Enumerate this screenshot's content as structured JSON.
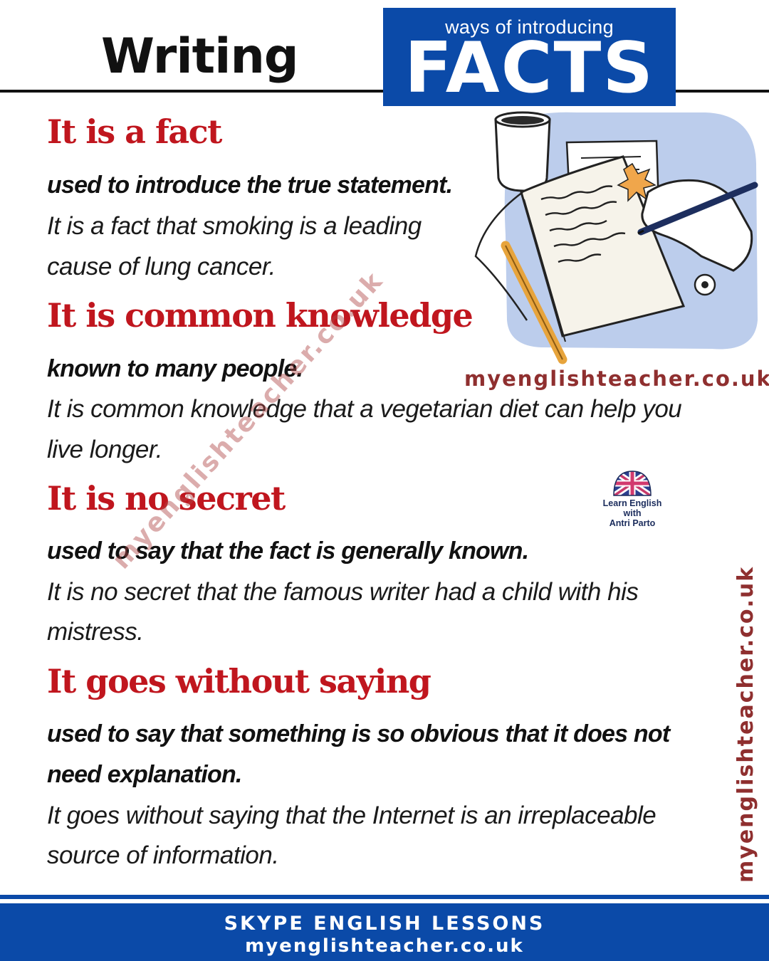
{
  "header": {
    "title": "Writing",
    "facts_box": {
      "subtitle": "ways of introducing",
      "title": "FACTS"
    }
  },
  "entries": [
    {
      "phrase": "It is a fact",
      "definition": [
        "used to introduce the true statement."
      ],
      "example": [
        "It is a fact that smoking is a leading",
        "cause of lung cancer."
      ]
    },
    {
      "phrase": "It is common knowledge",
      "definition": [
        "known to many people."
      ],
      "example": [
        "It is common knowledge that a vegetarian diet can help you",
        "live longer."
      ]
    },
    {
      "phrase": "It is no secret",
      "definition": [
        "used to say that the fact is generally known."
      ],
      "example": [
        "It is no secret that the famous writer had a child with his",
        "mistress."
      ]
    },
    {
      "phrase": "It goes without saying",
      "definition": [
        "used to say that something is so obvious that it does not",
        "need explanation."
      ],
      "example": [
        "It goes without saying that the Internet is an irreplaceable",
        "source of information."
      ]
    }
  ],
  "branding": {
    "site_under_illustration": "myenglishteacher.co.uk",
    "watermark_diagonal": "myenglishteacher.co.uk",
    "watermark_vertical": "myenglishteacher.co.uk",
    "logo_text": "Learn English\nwith\nAntri Parto"
  },
  "footer": {
    "line1": "SKYPE ENGLISH LESSONS",
    "line2": "myenglishteacher.co.uk"
  },
  "colors": {
    "brand_blue": "#0b4aa8",
    "phrase_red": "#c0161e",
    "site_text": "#8f2f2f",
    "illustration_bg": "#bccdec"
  },
  "icons": [
    "writing-illustration",
    "uk-flag-globe-icon"
  ]
}
